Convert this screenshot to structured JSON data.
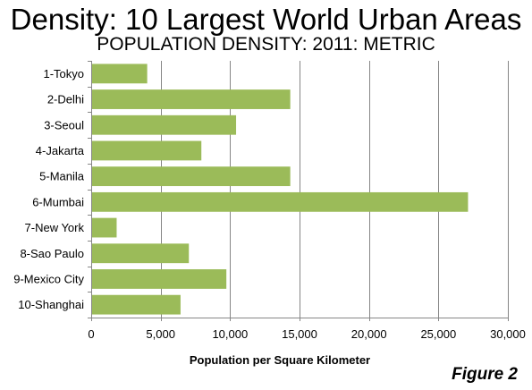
{
  "chart_data": {
    "type": "bar",
    "orientation": "horizontal",
    "title": "Density: 10 Largest World Urban Areas",
    "subtitle": "POPULATION DENSITY: 2011: METRIC",
    "xlabel": "Population per Square Kilometer",
    "ylabel": "",
    "categories": [
      "1-Tokyo",
      "2-Delhi",
      "3-Seoul",
      "4-Jakarta",
      "5-Manila",
      "6-Mumbai",
      "7-New York",
      "8-Sao Paulo",
      "9-Mexico City",
      "10-Shanghai"
    ],
    "values": [
      4000,
      14300,
      10400,
      7900,
      14300,
      27100,
      1800,
      7000,
      9700,
      6400
    ],
    "xlim": [
      0,
      30000
    ],
    "xticks": [
      0,
      5000,
      10000,
      15000,
      20000,
      25000,
      30000
    ],
    "xtick_labels": [
      "0",
      "5,000",
      "10,000",
      "15,000",
      "20,000",
      "25,000",
      "30,000"
    ],
    "grid": "vertical",
    "legend": "none",
    "bar_color": "#9BBB59",
    "grid_color": "#868686",
    "annotation": "Figure 2"
  }
}
